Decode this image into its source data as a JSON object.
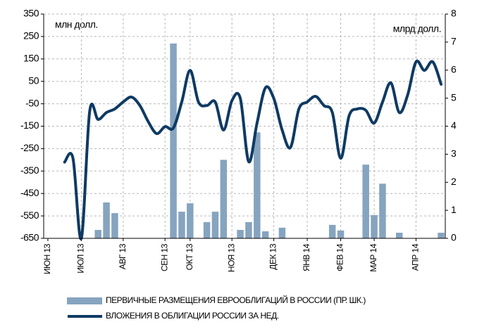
{
  "chart_data": {
    "type": "combo",
    "ylabel": "млн долл.",
    "y2label": "млрд долл.",
    "categories": [
      "ИЮН 13",
      null,
      null,
      null,
      "ИЮЛ 13",
      null,
      null,
      null,
      null,
      "АВГ 13",
      null,
      null,
      null,
      null,
      "СЕН 13",
      null,
      null,
      "ОКТ 13",
      null,
      null,
      null,
      null,
      "НОЯ 13",
      null,
      null,
      null,
      null,
      "ДЕК 13",
      null,
      null,
      null,
      "ЯНВ 14",
      null,
      null,
      null,
      "ФЕВ 14",
      null,
      null,
      null,
      "МАР 14",
      null,
      null,
      null,
      null,
      "АПР 14",
      null,
      null,
      null
    ],
    "series": [
      {
        "name": "ПЕРВИЧНЫЕ РАЗМЕЩЕНИЯ ЕВРООБЛИГАЦИЙ В РОССИИ (ПР. ШК.)",
        "type": "bar",
        "axis": "y2",
        "color": "#86a4bf",
        "values": [
          null,
          null,
          null,
          null,
          null,
          null,
          0.3,
          1.28,
          0.9,
          null,
          null,
          null,
          null,
          null,
          null,
          6.95,
          0.95,
          1.25,
          null,
          0.58,
          0.95,
          2.8,
          null,
          0.3,
          0.58,
          3.78,
          0.25,
          null,
          0.38,
          null,
          null,
          null,
          null,
          null,
          0.48,
          0.28,
          null,
          null,
          2.63,
          0.83,
          1.95,
          null,
          0.2,
          null,
          null,
          null,
          null,
          0.2
        ]
      },
      {
        "name": "ВЛОЖЕНИЯ В ОБЛИГАЦИИ РОССИИ ЗА НЕД.",
        "type": "line",
        "axis": "y",
        "color": "#0f3a63",
        "values": [
          null,
          null,
          -310,
          -293,
          -650,
          -83,
          -120,
          -89,
          -73,
          -42,
          -20,
          -58,
          -130,
          -183,
          -152,
          -158,
          -42,
          99,
          -42,
          -58,
          -42,
          -167,
          -36,
          -26,
          -308,
          -136,
          21,
          -26,
          -167,
          -245,
          -73,
          -42,
          -17,
          -58,
          -89,
          -293,
          -104,
          -73,
          -79,
          -136,
          -42,
          43,
          -89,
          -11,
          137,
          99,
          137,
          37
        ]
      }
    ],
    "ylim": [
      -650,
      350
    ],
    "yticks": [
      -650,
      -550,
      -450,
      -350,
      -250,
      -150,
      -50,
      50,
      150,
      250,
      350
    ],
    "y2lim": [
      0,
      8
    ],
    "y2ticks": [
      0,
      1,
      2,
      3,
      4,
      5,
      6,
      7,
      8
    ],
    "grid": true
  }
}
